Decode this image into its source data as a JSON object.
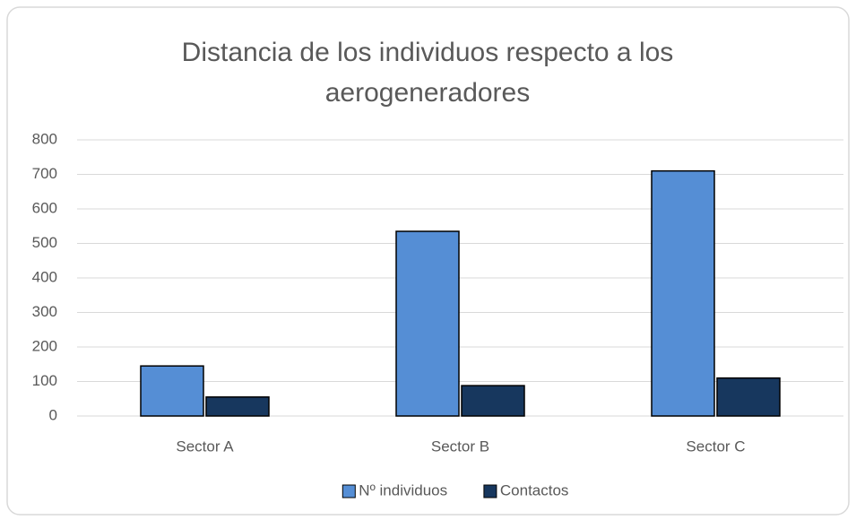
{
  "chart_data": {
    "type": "bar",
    "title": "Distancia de los individuos respecto a los aerogeneradores",
    "categories": [
      "Sector A",
      "Sector B",
      "Sector C"
    ],
    "series": [
      {
        "name": "Nº individuos",
        "color": "#558ed5",
        "values": [
          145,
          535,
          710
        ]
      },
      {
        "name": "Contactos",
        "color": "#17375e",
        "values": [
          55,
          88,
          110
        ]
      }
    ],
    "ylim": [
      0,
      800
    ],
    "yticks": [
      0,
      100,
      200,
      300,
      400,
      500,
      600,
      700,
      800
    ],
    "grid": true,
    "legend": "bottom"
  }
}
